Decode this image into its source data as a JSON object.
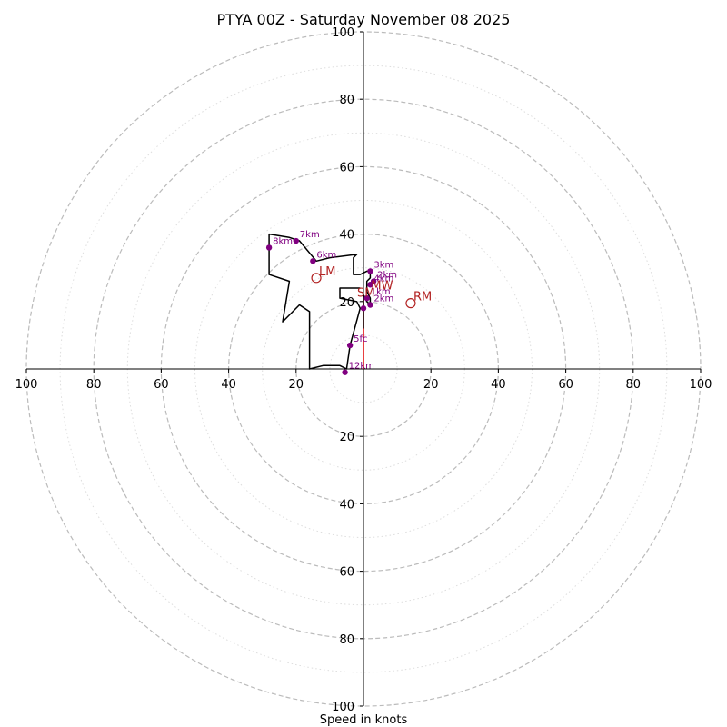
{
  "chart_data": {
    "type": "hodograph",
    "title": "PTYA 00Z - Saturday November 08 2025",
    "xlabel": "Speed in knots",
    "xlim": [
      -100,
      100
    ],
    "ylim": [
      -100,
      100
    ],
    "ring_major": [
      20,
      40,
      60,
      80,
      100
    ],
    "ring_minor": [
      10,
      30,
      50,
      70,
      90
    ],
    "x_ticks": [
      "100",
      "80",
      "60",
      "40",
      "20",
      "20",
      "40",
      "60",
      "80",
      "100"
    ],
    "x_tick_values": [
      -100,
      -80,
      -60,
      -40,
      -20,
      20,
      40,
      60,
      80,
      100
    ],
    "y_ticks": [
      "100",
      "80",
      "60",
      "40",
      "20",
      "20",
      "40",
      "60",
      "80",
      "100"
    ],
    "y_tick_values": [
      100,
      80,
      60,
      40,
      20,
      -20,
      -40,
      -60,
      -80,
      -100
    ],
    "colors": {
      "trace": "#000000",
      "points": "#800080",
      "motion": "#b22222",
      "shear": "#e00000",
      "grid": "#bbbbbb",
      "grid_minor": "#dddddd"
    },
    "trace": [
      [
        0,
        12
      ],
      [
        0,
        16
      ],
      [
        0,
        20
      ],
      [
        0,
        22
      ],
      [
        1,
        20
      ],
      [
        2,
        19
      ],
      [
        2,
        21
      ],
      [
        1,
        23
      ],
      [
        1,
        26
      ],
      [
        2,
        27
      ],
      [
        2,
        29
      ],
      [
        1,
        29
      ],
      [
        -1,
        28
      ],
      [
        -3,
        28
      ],
      [
        -3,
        33
      ],
      [
        -2,
        34
      ],
      [
        -10,
        33
      ],
      [
        -14,
        32
      ],
      [
        -19,
        38
      ],
      [
        -22,
        39
      ],
      [
        -28,
        40
      ],
      [
        -28,
        36
      ],
      [
        -28,
        28
      ],
      [
        -22,
        26
      ],
      [
        -24,
        14
      ],
      [
        -19,
        19
      ],
      [
        -16,
        17
      ],
      [
        -16,
        13
      ],
      [
        -16,
        0
      ],
      [
        -12,
        1
      ],
      [
        -7,
        1
      ],
      [
        -5,
        0
      ],
      [
        -4,
        7
      ],
      [
        -1,
        18
      ],
      [
        -2,
        20
      ],
      [
        -7,
        21
      ],
      [
        -7,
        24
      ],
      [
        -3,
        24
      ],
      [
        -1,
        24
      ]
    ],
    "height_points": [
      {
        "label": "5fc",
        "u": -4,
        "v": 7
      },
      {
        "label": "12km",
        "u": -5.5,
        "v": -1
      },
      {
        "label": "8km",
        "u": -28,
        "v": 36
      },
      {
        "label": "7km",
        "u": -20,
        "v": 38
      },
      {
        "label": "6km",
        "u": -15,
        "v": 32
      },
      {
        "label": "3km",
        "u": 2,
        "v": 29
      },
      {
        "label": "4km",
        "u": 2,
        "v": 25
      },
      {
        "label": "2km",
        "u": 3,
        "v": 26
      },
      {
        "label": "1km",
        "u": 1,
        "v": 21
      },
      {
        "label": "2km",
        "u": 2,
        "v": 19
      },
      {
        "label": "",
        "u": 0,
        "v": 18
      }
    ],
    "storm_motion": [
      {
        "label": "RM",
        "u": 14,
        "v": 19.5
      },
      {
        "label": "LM",
        "u": -14,
        "v": 27
      }
    ],
    "mean_wind_label": "MW",
    "mean_wind": {
      "u": 2,
      "v": 25
    },
    "srh_marker": {
      "label": "SM",
      "u": 0,
      "v": 22
    },
    "shear_vector": [
      [
        0,
        0
      ],
      [
        0,
        22
      ]
    ]
  }
}
